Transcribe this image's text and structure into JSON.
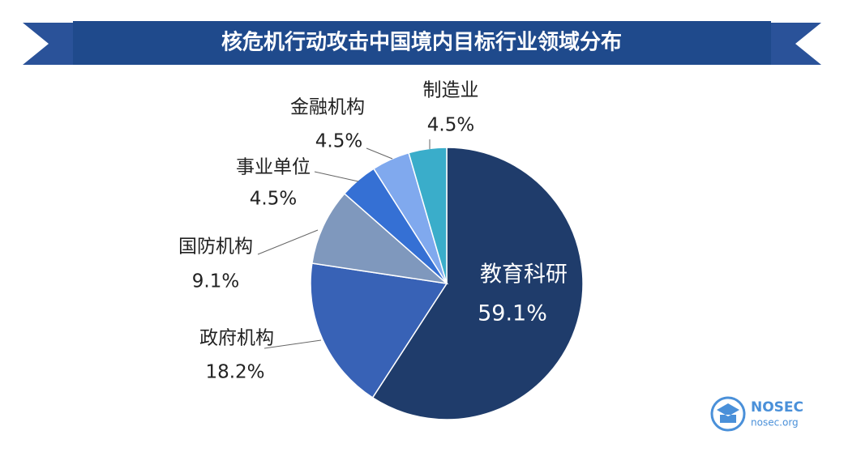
{
  "chart_data": {
    "type": "pie",
    "title": "核危机行动攻击中国境内目标行业领域分布",
    "categories": [
      "教育科研",
      "政府机构",
      "国防机构",
      "事业单位",
      "金融机构",
      "制造业"
    ],
    "values": [
      59.1,
      18.2,
      9.1,
      4.5,
      4.5,
      4.5
    ],
    "value_labels": [
      "59.1%",
      "18.2%",
      "9.1%",
      "4.5%",
      "4.5%",
      "4.5%"
    ],
    "colors": [
      "#1f3c6b",
      "#3862b6",
      "#7f98bd",
      "#3570d4",
      "#80a9ee",
      "#3aadca"
    ]
  },
  "logo": {
    "name": "NOSEC",
    "url": "nosec.org"
  }
}
